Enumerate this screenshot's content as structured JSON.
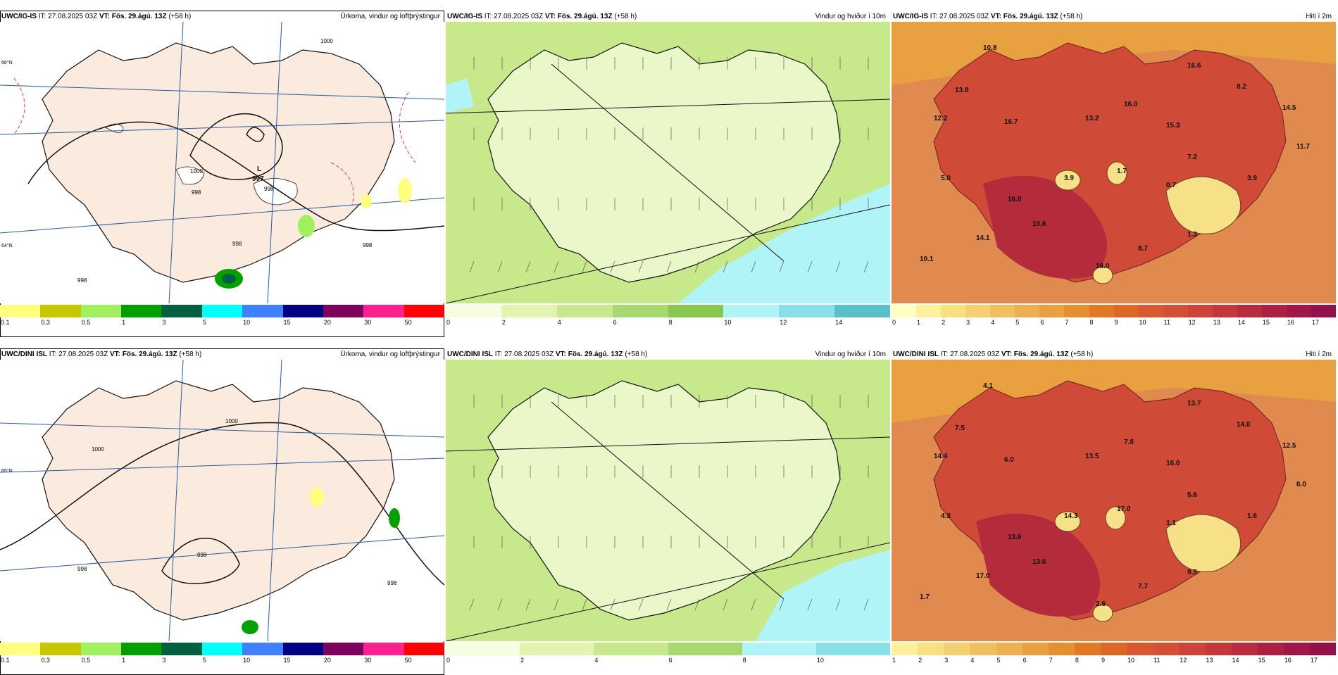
{
  "header": {
    "rows": [
      {
        "model": "UWC/IG-IS",
        "it_prefix": "IT:",
        "it": "27.08.2025 03Z",
        "vt_prefix": "VT:",
        "vt": "Fös. 29.ágú. 13Z",
        "lead": "(+58 h)"
      },
      {
        "model": "UWC/DINI ISL",
        "it_prefix": "IT:",
        "it": "27.08.2025 03Z",
        "vt_prefix": "VT:",
        "vt": "Fös. 29.ágú. 13Z",
        "lead": "(+58 h)"
      }
    ]
  },
  "titles": {
    "precip": "Úrkoma, vindur og loftþrýstingur",
    "wind": "Vindur og hviður í 10m",
    "temp": "Hiti í 2m"
  },
  "colorbars": {
    "precip": {
      "ticks": [
        "0.1",
        "0.3",
        "0.5",
        "1",
        "3",
        "5",
        "10",
        "15",
        "20",
        "30",
        "50"
      ],
      "colors": [
        "#ffff80",
        "#c8c800",
        "#a0f060",
        "#00a000",
        "#006040",
        "#00ffff",
        "#4080ff",
        "#000080",
        "#800060",
        "#ff2090",
        "#ff0000"
      ]
    },
    "wind_top": {
      "ticks": [
        "0",
        "2",
        "4",
        "6",
        "8",
        "10",
        "12",
        "14"
      ],
      "colors": [
        "#f6fde0",
        "#e2f4b0",
        "#c8e88c",
        "#a8d870",
        "#88c850",
        "#b0f4f8",
        "#88e0e8",
        "#58c0c8"
      ]
    },
    "wind_bottom": {
      "ticks": [
        "0",
        "2",
        "4",
        "6",
        "8",
        "10"
      ],
      "colors": [
        "#f6fde0",
        "#e2f4b0",
        "#c8e88c",
        "#a8d870",
        "#b0f4f8",
        "#88e0e8"
      ]
    },
    "temp_top": {
      "ticks": [
        "0",
        "1",
        "2",
        "3",
        "4",
        "5",
        "6",
        "7",
        "8",
        "9",
        "10",
        "11",
        "12",
        "13",
        "14",
        "15",
        "16",
        "17"
      ],
      "colors": [
        "#ffffc0",
        "#fff0a0",
        "#f8e080",
        "#f4d070",
        "#f0c060",
        "#ecb050",
        "#e8a040",
        "#e49030",
        "#e07828",
        "#dc6828",
        "#d85830",
        "#d45034",
        "#cc4438",
        "#c4383c",
        "#b82c40",
        "#ac2044",
        "#a01848",
        "#941048"
      ]
    },
    "temp_bottom": {
      "ticks": [
        "1",
        "2",
        "3",
        "4",
        "5",
        "6",
        "7",
        "8",
        "9",
        "10",
        "11",
        "12",
        "13",
        "14",
        "15",
        "16",
        "17"
      ],
      "colors": [
        "#fff0a0",
        "#f8e080",
        "#f4d070",
        "#f0c060",
        "#ecb050",
        "#e8a040",
        "#e49030",
        "#e07828",
        "#dc6828",
        "#d85830",
        "#d45034",
        "#cc4438",
        "#c4383c",
        "#b82c40",
        "#ac2044",
        "#a01848",
        "#941048"
      ]
    }
  },
  "pressure": {
    "top": {
      "low_letter": "L",
      "low_value": "997",
      "isobars": [
        "998",
        "998",
        "998",
        "998",
        "998",
        "1000",
        "1000"
      ]
    },
    "bottom": {
      "isobars": [
        "1000",
        "1000",
        "998",
        "998",
        "998"
      ]
    }
  },
  "temperature_labels": {
    "top": [
      "10.8",
      "16.6",
      "13.8",
      "8.2",
      "14.5",
      "12.2",
      "16.7",
      "13.2",
      "16.0",
      "15.3",
      "11.7",
      "7.2",
      "5.0",
      "3.9",
      "1.7",
      "3.9",
      "0.7",
      "16.0",
      "10.6",
      "1.3",
      "14.1",
      "8.7",
      "10.1",
      "16.0"
    ],
    "bottom": [
      "4.1",
      "13.7",
      "7.5",
      "14.0",
      "12.5",
      "14.4",
      "6.0",
      "13.5",
      "7.8",
      "16.0",
      "6.0",
      "5.6",
      "4.3",
      "14.3",
      "17.0",
      "1.6",
      "1.1",
      "13.6",
      "13.6",
      "9.5",
      "17.0",
      "7.7",
      "1.7",
      "2.6"
    ]
  },
  "lat_labels": [
    "66°N",
    "65°N",
    "64°N"
  ]
}
